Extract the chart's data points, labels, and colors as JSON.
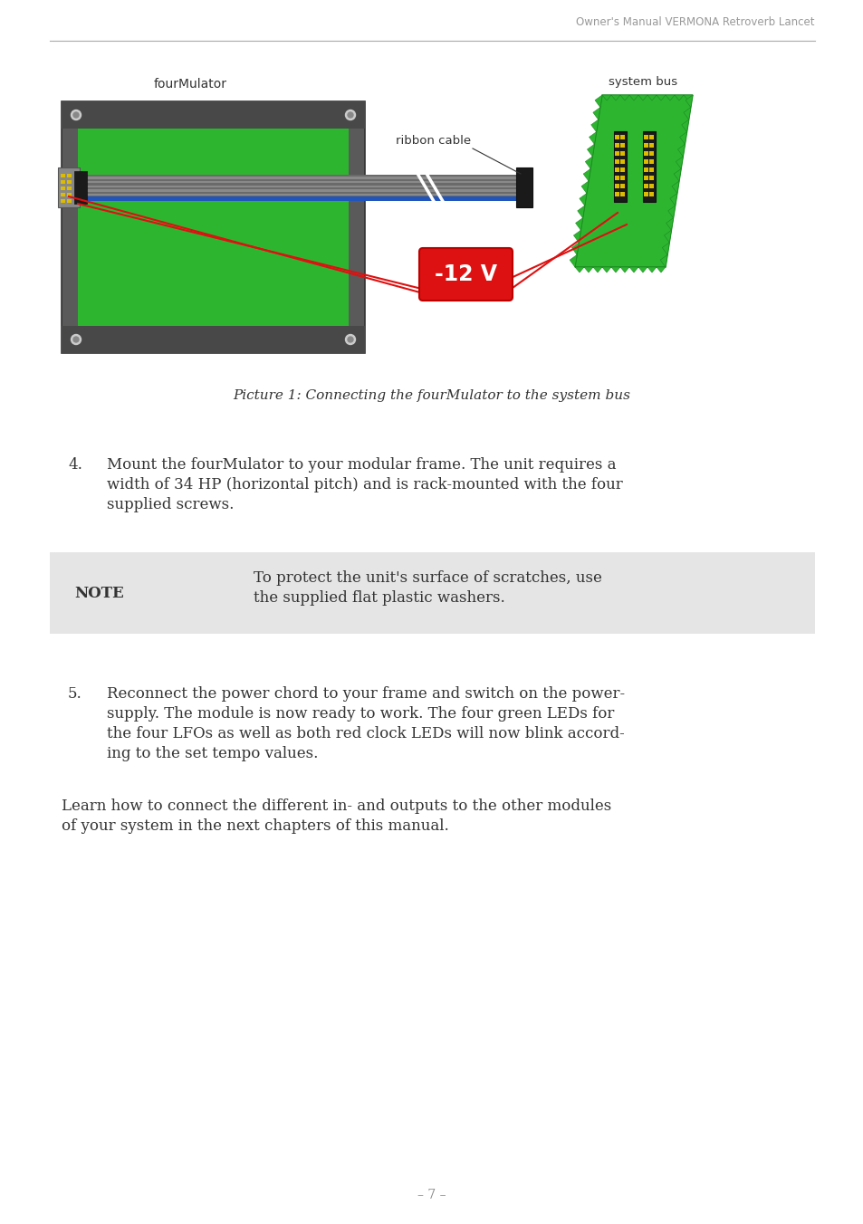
{
  "header_text": "Owner's Manual VERMONA Retroverb Lancet",
  "header_color": "#999999",
  "line_color": "#aaaaaa",
  "figure_label": "fourMulator",
  "ribbon_label": "ribbon cable",
  "system_bus_label": "system bus",
  "caption": "Picture 1: Connecting the fourMulator to the system bus",
  "note_label": "NOTE",
  "note_text_line1": "To protect the unit's surface of scratches, use",
  "note_text_line2": "the supplied flat plastic washers.",
  "para4_number": "4.",
  "para4_line1": "Mount the fourMulator to your modular frame. The unit requires a",
  "para4_line2": "width of 34 HP (horizontal pitch) and is rack-mounted with the four",
  "para4_line3": "supplied screws.",
  "para5_number": "5.",
  "para5_line1": "Reconnect the power chord to your frame and switch on the power-",
  "para5_line2": "supply. The module is now ready to work. The four green LEDs for",
  "para5_line3": "the four LFOs as well as both red clock LEDs will now blink accord-",
  "para5_line4": "ing to the set tempo values.",
  "learn_line1": "Learn how to connect the different in- and outputs to the other modules",
  "learn_line2": "of your system in the next chapters of this manual.",
  "page_number": "– 7 –",
  "bg_color": "#ffffff",
  "text_color": "#333333",
  "note_bg": "#e5e5e5",
  "green_color": "#2db530",
  "dark_gray": "#555555",
  "darker_gray": "#444444",
  "red_color": "#dd1111",
  "cable_dark": "#6a6a6a",
  "cable_light": "#8a8a8a",
  "blue_wire": "#2255bb",
  "black_conn": "#1a1a1a",
  "yellow_pin": "#ddbb00",
  "panel_bg": "#4d4d4d"
}
